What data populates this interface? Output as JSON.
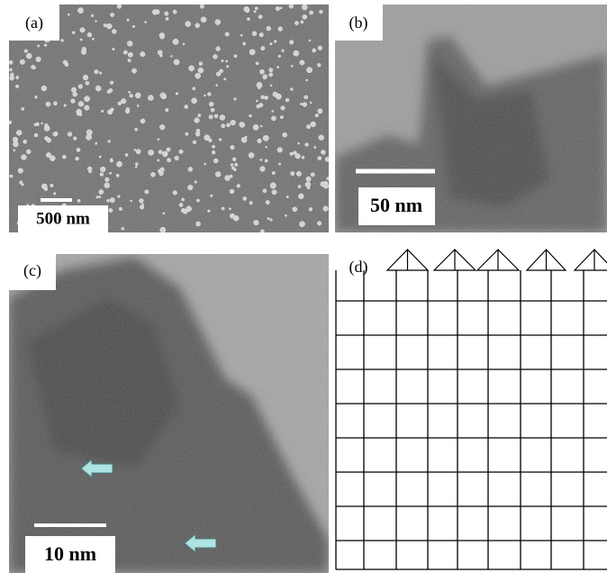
{
  "panels": [
    {
      "label": "(a)",
      "scale_bar": "500 nm"
    },
    {
      "label": "(b)",
      "scale_bar": "50 nm"
    },
    {
      "label": "(c)",
      "scale_bar": "10 nm"
    },
    {
      "label": "(d)"
    }
  ]
}
